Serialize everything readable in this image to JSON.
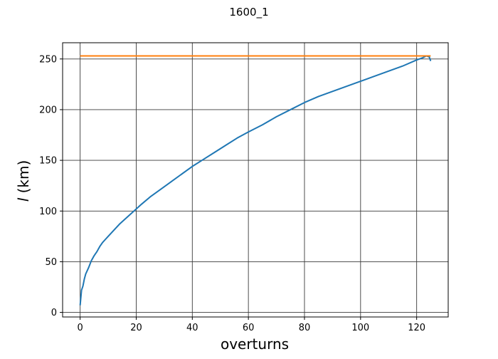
{
  "chart_data": {
    "type": "line",
    "title": "1600_1",
    "xlabel": "overturns",
    "ylabel_italic": "l",
    "ylabel_unit": " (km)",
    "xlim": [
      -6.25,
      131.25
    ],
    "ylim": [
      -4.5,
      266
    ],
    "xticks": [
      0,
      20,
      40,
      60,
      80,
      100,
      120
    ],
    "yticks": [
      0,
      50,
      100,
      150,
      200,
      250
    ],
    "grid": true,
    "series": [
      {
        "color": "#1f77b4",
        "x": [
          0,
          0.5,
          1,
          1.5,
          2,
          3,
          4,
          5,
          6,
          7,
          8,
          9,
          10,
          12,
          14,
          16,
          18,
          20,
          22,
          25,
          28,
          32,
          36,
          40,
          44,
          48,
          52,
          56,
          60,
          65,
          70,
          75,
          80,
          85,
          90,
          95,
          100,
          105,
          110,
          115,
          120,
          122,
          123.5,
          124.5,
          125
        ],
        "y": [
          7,
          22,
          26,
          33,
          38,
          44,
          51,
          56,
          60,
          65,
          69,
          72,
          75,
          81,
          87,
          92,
          97,
          102,
          107,
          114,
          120,
          128,
          136,
          144,
          151,
          158,
          165,
          172,
          178,
          185,
          193,
          200,
          207,
          213,
          218,
          223,
          228,
          233,
          238,
          243,
          249,
          251,
          253,
          252,
          248
        ]
      },
      {
        "color": "#ff7f0e",
        "x": [
          0,
          125
        ],
        "y": [
          253,
          253
        ]
      }
    ]
  }
}
